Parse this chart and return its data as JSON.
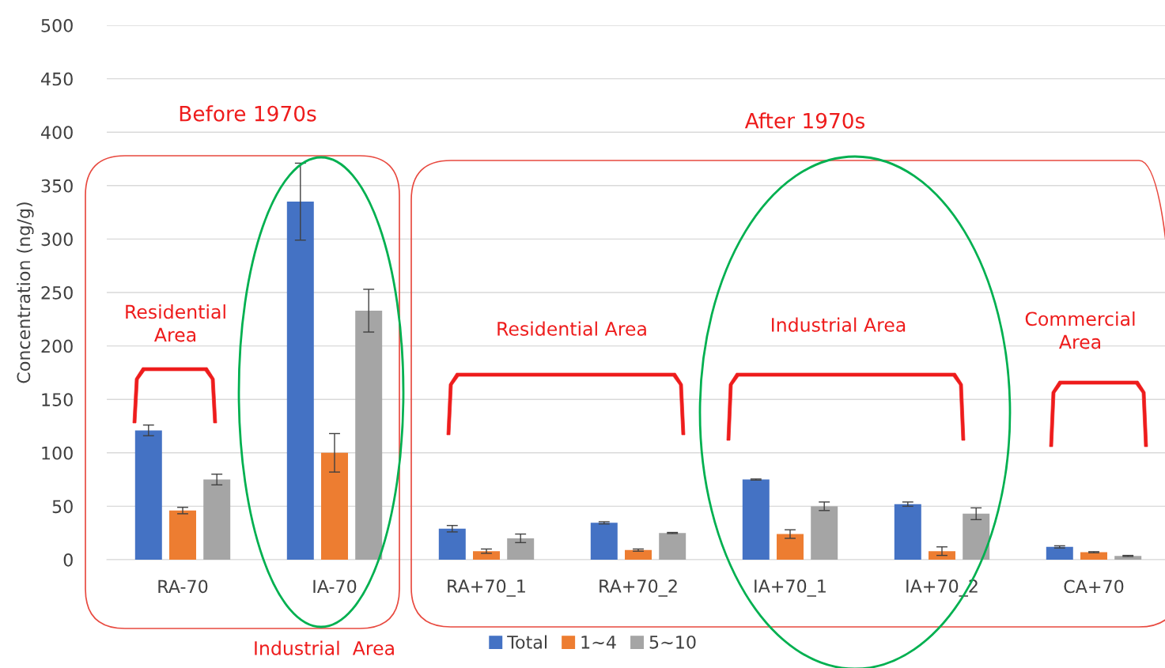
{
  "chart_data": {
    "type": "bar",
    "ylabel": "Concentration (ng/g)",
    "categories": [
      "RA-70",
      "IA-70",
      "RA+70_1",
      "RA+70_2",
      "IA+70_1",
      "IA+70_2",
      "CA+70"
    ],
    "series": [
      {
        "name": "Total",
        "color": "#4472c4",
        "values": [
          121,
          335,
          29,
          34.5,
          75,
          52,
          12
        ],
        "errors": [
          5,
          36,
          3,
          1,
          0.5,
          2,
          1
        ]
      },
      {
        "name": "1~4",
        "color": "#ed7d31",
        "values": [
          46,
          100,
          8,
          9,
          24,
          8,
          7
        ],
        "errors": [
          3,
          18,
          2,
          1,
          4,
          4,
          0.5
        ]
      },
      {
        "name": "5~10",
        "color": "#a5a5a5",
        "values": [
          75,
          233,
          20,
          25,
          50,
          43,
          3.5
        ],
        "errors": [
          5,
          20,
          4,
          0.5,
          4,
          5.5,
          0.5
        ]
      }
    ],
    "ylim": [
      0,
      500
    ],
    "yticks": [
      0,
      50,
      100,
      150,
      200,
      250,
      300,
      350,
      400,
      450,
      500
    ],
    "grid": "y",
    "legend": "bottom",
    "annotations": [
      "Before 1970s",
      "After 1970s",
      "Residential\nArea",
      "Industrial  Area",
      "Residential Area",
      "Industrial Area",
      "Commercial\nArea"
    ]
  }
}
